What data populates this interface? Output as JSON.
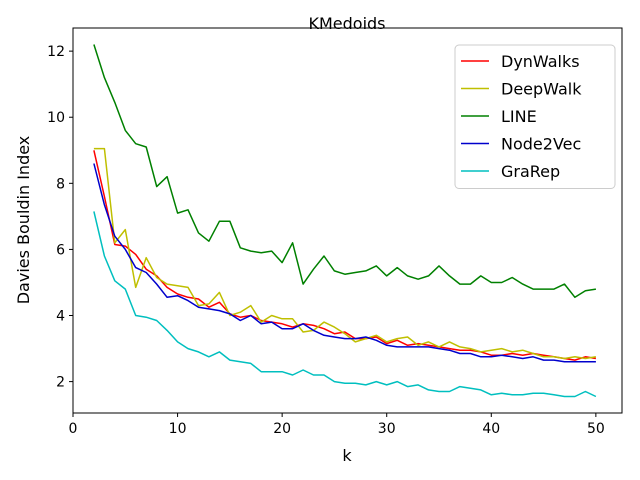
{
  "chart_data": {
    "type": "line",
    "title": "KMedoids",
    "xlabel": "k",
    "ylabel": "Davies Bouldin Index",
    "xlim": [
      0,
      52.5
    ],
    "ylim": [
      1.05,
      12.7
    ],
    "xticks": [
      0,
      10,
      20,
      30,
      40,
      50
    ],
    "yticks": [
      2,
      4,
      6,
      8,
      10,
      12
    ],
    "grid": false,
    "legend": "top-right",
    "x": [
      2,
      3,
      4,
      5,
      6,
      7,
      8,
      9,
      10,
      11,
      12,
      13,
      14,
      15,
      16,
      17,
      18,
      19,
      20,
      21,
      22,
      23,
      24,
      25,
      26,
      27,
      28,
      29,
      30,
      31,
      32,
      33,
      34,
      35,
      36,
      37,
      38,
      39,
      40,
      41,
      42,
      43,
      44,
      45,
      46,
      47,
      48,
      49,
      50
    ],
    "series": [
      {
        "name": "DynWalks",
        "color": "#ff0000",
        "values": [
          9.0,
          7.6,
          6.15,
          6.1,
          5.85,
          5.4,
          5.2,
          4.85,
          4.65,
          4.55,
          4.5,
          4.25,
          4.4,
          4.05,
          3.95,
          4.0,
          3.85,
          3.8,
          3.75,
          3.65,
          3.75,
          3.7,
          3.6,
          3.45,
          3.5,
          3.3,
          3.3,
          3.35,
          3.15,
          3.25,
          3.1,
          3.15,
          3.1,
          3.05,
          3.0,
          2.95,
          2.95,
          2.9,
          2.8,
          2.8,
          2.85,
          2.8,
          2.85,
          2.8,
          2.75,
          2.7,
          2.65,
          2.75,
          2.7
        ]
      },
      {
        "name": "DeepWalk",
        "color": "#bfbf00",
        "values": [
          9.05,
          9.05,
          6.2,
          6.6,
          4.85,
          5.75,
          5.15,
          4.95,
          4.9,
          4.85,
          4.3,
          4.35,
          4.7,
          4.0,
          4.1,
          4.3,
          3.8,
          4.0,
          3.9,
          3.9,
          3.5,
          3.55,
          3.8,
          3.65,
          3.45,
          3.2,
          3.3,
          3.4,
          3.2,
          3.3,
          3.35,
          3.1,
          3.2,
          3.05,
          3.2,
          3.05,
          3.0,
          2.9,
          2.95,
          3.0,
          2.9,
          2.95,
          2.85,
          2.75,
          2.75,
          2.7,
          2.75,
          2.7,
          2.75
        ]
      },
      {
        "name": "LINE",
        "color": "#008000",
        "values": [
          12.2,
          11.2,
          10.45,
          9.6,
          9.2,
          9.1,
          7.9,
          8.2,
          7.1,
          7.2,
          6.5,
          6.25,
          6.85,
          6.85,
          6.05,
          5.95,
          5.9,
          5.95,
          5.6,
          6.2,
          4.95,
          5.4,
          5.8,
          5.35,
          5.25,
          5.3,
          5.35,
          5.5,
          5.2,
          5.45,
          5.2,
          5.1,
          5.2,
          5.5,
          5.2,
          4.95,
          4.95,
          5.2,
          5.0,
          5.0,
          5.15,
          4.95,
          4.8,
          4.8,
          4.8,
          4.95,
          4.55,
          4.75,
          4.8
        ]
      },
      {
        "name": "Node2Vec",
        "color": "#0000cc",
        "values": [
          8.6,
          7.35,
          6.4,
          6.0,
          5.45,
          5.3,
          4.95,
          4.55,
          4.6,
          4.45,
          4.25,
          4.2,
          4.15,
          4.05,
          3.85,
          4.0,
          3.75,
          3.8,
          3.6,
          3.6,
          3.75,
          3.55,
          3.4,
          3.35,
          3.3,
          3.3,
          3.35,
          3.25,
          3.1,
          3.05,
          3.05,
          3.05,
          3.05,
          3.0,
          2.95,
          2.85,
          2.85,
          2.75,
          2.75,
          2.8,
          2.75,
          2.7,
          2.75,
          2.65,
          2.65,
          2.6,
          2.6,
          2.6,
          2.6
        ]
      },
      {
        "name": "GraRep",
        "color": "#00bfbf",
        "values": [
          7.15,
          5.8,
          5.05,
          4.8,
          4.0,
          3.95,
          3.85,
          3.55,
          3.2,
          3.0,
          2.9,
          2.75,
          2.9,
          2.65,
          2.6,
          2.55,
          2.3,
          2.3,
          2.3,
          2.2,
          2.35,
          2.2,
          2.2,
          2.0,
          1.95,
          1.95,
          1.9,
          2.0,
          1.9,
          2.0,
          1.85,
          1.9,
          1.75,
          1.7,
          1.7,
          1.85,
          1.8,
          1.75,
          1.6,
          1.65,
          1.6,
          1.6,
          1.65,
          1.65,
          1.6,
          1.55,
          1.55,
          1.7,
          1.55
        ]
      }
    ]
  }
}
